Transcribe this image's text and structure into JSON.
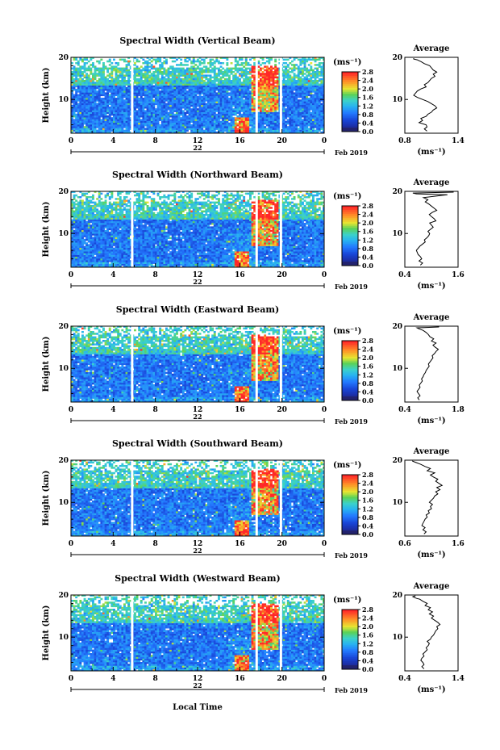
{
  "figure": {
    "shared_xlabel": "Local Time",
    "colorbar_unit": "(ms⁻¹)",
    "colorbar_ticks": [
      "0.0",
      "0.4",
      "0.8",
      "1.2",
      "1.6",
      "2.0",
      "2.4",
      "2.8"
    ],
    "colors": {
      "lowest": "#23236e",
      "low": "#1a3cc8",
      "mid_low": "#2878ff",
      "mid": "#32c8e6",
      "mid_high": "#5ad25a",
      "high": "#f0e632",
      "higher": "#ff8c28",
      "highest": "#ff2d2d",
      "axis": "#000000"
    }
  },
  "chart_data": [
    {
      "type": "heatmap",
      "title": "Spectral Width (Vertical Beam)",
      "ylabel": "Height (km)",
      "x_ticks": [
        "0",
        "4",
        "8",
        "12",
        "16",
        "20",
        "0"
      ],
      "date_tick": "22",
      "date_suffix": "Feb 2019",
      "xlim": [
        0,
        24
      ],
      "ylim": [
        2,
        20
      ],
      "y_ticks": [
        "20",
        "10"
      ],
      "gaps_hours": [
        5.8,
        17.6,
        19.9
      ],
      "profile": {
        "title": "Average",
        "xlabel": "(ms⁻¹)",
        "x_ticks": [
          "0.8",
          "1.4"
        ],
        "xlim": [
          0.8,
          1.4
        ],
        "y_ticks": [
          "20",
          "10"
        ],
        "x": [
          1.05,
          1.02,
          1.05,
          1.04,
          0.96,
          1.0,
          0.98,
          1.04,
          1.06,
          1.1,
          1.12,
          1.16,
          1.14,
          1.1,
          1.06,
          1.0,
          0.94,
          0.9,
          0.92,
          0.94,
          0.98,
          1.04,
          1.02,
          1.06,
          1.08,
          1.1,
          1.14,
          1.12,
          1.16,
          1.12,
          1.1,
          1.08,
          1.02,
          0.98,
          0.96,
          0.94,
          0.9,
          0.9
        ],
        "y": [
          2.5,
          3.0,
          3.5,
          4.0,
          4.5,
          5.0,
          5.5,
          6.0,
          6.5,
          7.0,
          7.5,
          8.0,
          8.5,
          9.0,
          9.5,
          10.0,
          10.5,
          11.0,
          11.5,
          12.0,
          12.5,
          13.0,
          13.5,
          14.0,
          14.5,
          15.0,
          15.5,
          16.0,
          16.5,
          17.0,
          17.5,
          18.0,
          18.5,
          19.0,
          19.2,
          19.4,
          19.6,
          19.8
        ]
      }
    },
    {
      "type": "heatmap",
      "title": "Spectral Width (Northward Beam)",
      "ylabel": "Height (km)",
      "x_ticks": [
        "0",
        "4",
        "8",
        "12",
        "16",
        "20",
        "0"
      ],
      "date_tick": "22",
      "date_suffix": "Feb 2019",
      "xlim": [
        0,
        24
      ],
      "ylim": [
        2,
        20
      ],
      "y_ticks": [
        "20",
        "10"
      ],
      "gaps_hours": [
        5.8,
        17.6,
        19.9
      ],
      "profile": {
        "title": "Average",
        "xlabel": "(ms⁻¹)",
        "x_ticks": [
          "0.4",
          "1.6"
        ],
        "xlim": [
          0.4,
          1.6
        ],
        "y_ticks": [
          "20",
          "10"
        ],
        "x": [
          0.75,
          0.8,
          0.72,
          0.78,
          0.75,
          0.7,
          0.68,
          0.66,
          0.7,
          0.74,
          0.8,
          0.86,
          0.84,
          0.9,
          0.94,
          0.96,
          0.92,
          0.98,
          1.04,
          1.0,
          0.96,
          1.1,
          1.06,
          1.0,
          0.95,
          1.02,
          1.12,
          1.06,
          1.0,
          0.94,
          0.86,
          0.92,
          0.82,
          1.2,
          1.36,
          0.66,
          0.58,
          1.5
        ],
        "y": [
          2.5,
          3.0,
          3.5,
          4.0,
          4.5,
          5.0,
          5.5,
          6.0,
          6.5,
          7.0,
          7.5,
          8.0,
          8.5,
          9.0,
          9.5,
          10.0,
          10.5,
          11.0,
          11.5,
          12.0,
          12.5,
          13.0,
          13.5,
          14.0,
          14.5,
          15.0,
          15.5,
          16.0,
          16.5,
          17.0,
          17.5,
          18.0,
          18.5,
          19.0,
          19.2,
          19.4,
          19.6,
          19.8
        ]
      }
    },
    {
      "type": "heatmap",
      "title": "Spectral Width (Eastward Beam)",
      "ylabel": "Height (km)",
      "x_ticks": [
        "0",
        "4",
        "8",
        "12",
        "16",
        "20",
        "0"
      ],
      "date_tick": "22",
      "date_suffix": "Feb 2019",
      "xlim": [
        0,
        24
      ],
      "ylim": [
        2,
        20
      ],
      "y_ticks": [
        "20",
        "10"
      ],
      "gaps_hours": [
        5.8,
        17.6,
        19.9
      ],
      "profile": {
        "title": "Average",
        "xlabel": "(ms⁻¹)",
        "x_ticks": [
          "0.4",
          "1.8"
        ],
        "xlim": [
          0.4,
          1.8
        ],
        "y_ticks": [
          "20",
          "10"
        ],
        "x": [
          0.78,
          0.74,
          0.8,
          0.76,
          0.72,
          0.76,
          0.8,
          0.78,
          0.82,
          0.86,
          0.84,
          0.88,
          0.9,
          0.94,
          0.96,
          1.0,
          1.04,
          1.02,
          1.06,
          1.1,
          1.14,
          1.12,
          1.18,
          1.22,
          1.28,
          1.2,
          1.14,
          1.22,
          1.1,
          1.16,
          1.06,
          1.02,
          0.96,
          0.88,
          0.82,
          0.76,
          0.72,
          1.3
        ],
        "y": [
          2.5,
          3.0,
          3.5,
          4.0,
          4.5,
          5.0,
          5.5,
          6.0,
          6.5,
          7.0,
          7.5,
          8.0,
          8.5,
          9.0,
          9.5,
          10.0,
          10.5,
          11.0,
          11.5,
          12.0,
          12.5,
          13.0,
          13.5,
          14.0,
          14.5,
          15.0,
          15.5,
          16.0,
          16.5,
          17.0,
          17.5,
          18.0,
          18.5,
          19.0,
          19.2,
          19.4,
          19.6,
          19.8
        ]
      }
    },
    {
      "type": "heatmap",
      "title": "Spectral Width (Southward Beam)",
      "ylabel": "Height (km)",
      "x_ticks": [
        "0",
        "4",
        "8",
        "12",
        "16",
        "20",
        "0"
      ],
      "date_tick": "22",
      "date_suffix": "Feb 2019",
      "xlim": [
        0,
        24
      ],
      "ylim": [
        2,
        20
      ],
      "y_ticks": [
        "20",
        "10"
      ],
      "gaps_hours": [
        5.8,
        17.6,
        19.9
      ],
      "profile": {
        "title": "Average",
        "xlabel": "(ms⁻¹)",
        "x_ticks": [
          "0.6",
          "1.6"
        ],
        "xlim": [
          0.6,
          1.6
        ],
        "y_ticks": [
          "20",
          "10"
        ],
        "x": [
          0.96,
          1.0,
          0.94,
          0.98,
          0.92,
          0.94,
          0.96,
          0.98,
          1.02,
          1.0,
          1.06,
          1.04,
          1.1,
          1.08,
          1.12,
          1.06,
          1.1,
          1.14,
          1.16,
          1.22,
          1.18,
          1.26,
          1.2,
          1.3,
          1.24,
          1.18,
          1.22,
          1.14,
          1.08,
          1.16,
          1.02,
          1.08,
          0.98,
          0.9,
          0.86,
          0.82,
          0.78,
          0.74
        ],
        "y": [
          2.5,
          3.0,
          3.5,
          4.0,
          4.5,
          5.0,
          5.5,
          6.0,
          6.5,
          7.0,
          7.5,
          8.0,
          8.5,
          9.0,
          9.5,
          10.0,
          10.5,
          11.0,
          11.5,
          12.0,
          12.5,
          13.0,
          13.5,
          14.0,
          14.5,
          15.0,
          15.5,
          16.0,
          16.5,
          17.0,
          17.5,
          18.0,
          18.5,
          19.0,
          19.2,
          19.4,
          19.6,
          19.8
        ]
      }
    },
    {
      "type": "heatmap",
      "title": "Spectral Width (Westward Beam)",
      "ylabel": "Height (km)",
      "x_ticks": [
        "0",
        "4",
        "8",
        "12",
        "16",
        "20",
        "0"
      ],
      "date_tick": "22",
      "date_suffix": "Feb 2019",
      "xlim": [
        0,
        24
      ],
      "ylim": [
        2,
        20
      ],
      "y_ticks": [
        "20",
        "10"
      ],
      "gaps_hours": [
        5.8,
        17.6,
        19.9
      ],
      "profile": {
        "title": "Average",
        "xlabel": "(ms⁻¹)",
        "x_ticks": [
          "0.4",
          "1.4"
        ],
        "xlim": [
          0.4,
          1.4
        ],
        "y_ticks": [
          "20",
          "10"
        ],
        "x": [
          0.76,
          0.72,
          0.76,
          0.74,
          0.7,
          0.72,
          0.76,
          0.74,
          0.78,
          0.82,
          0.8,
          0.84,
          0.86,
          0.82,
          0.88,
          0.9,
          0.94,
          0.96,
          0.98,
          1.02,
          1.0,
          1.06,
          1.02,
          0.96,
          0.9,
          0.94,
          0.86,
          0.92,
          0.84,
          0.88,
          0.78,
          0.82,
          0.74,
          0.68,
          0.62,
          0.58,
          0.55,
          0.6
        ],
        "y": [
          2.5,
          3.0,
          3.5,
          4.0,
          4.5,
          5.0,
          5.5,
          6.0,
          6.5,
          7.0,
          7.5,
          8.0,
          8.5,
          9.0,
          9.5,
          10.0,
          10.5,
          11.0,
          11.5,
          12.0,
          12.5,
          13.0,
          13.5,
          14.0,
          14.5,
          15.0,
          15.5,
          16.0,
          16.5,
          17.0,
          17.5,
          18.0,
          18.5,
          19.0,
          19.2,
          19.4,
          19.6,
          19.8
        ]
      }
    }
  ]
}
